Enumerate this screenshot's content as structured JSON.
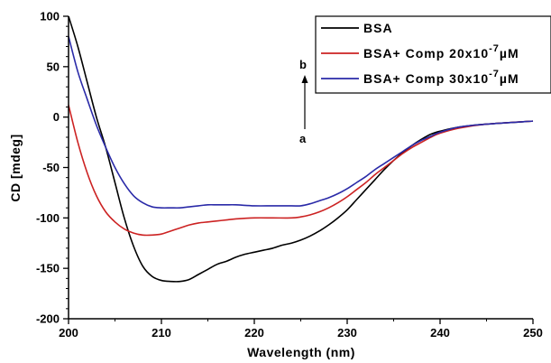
{
  "chart_data": {
    "type": "line",
    "xlabel": "Wavelength (nm)",
    "ylabel": "CD [mdeg]",
    "xlim": [
      200,
      250
    ],
    "ylim": [
      -200,
      100
    ],
    "x_ticks": [
      200,
      210,
      220,
      230,
      240,
      250
    ],
    "y_ticks": [
      100,
      50,
      0,
      -50,
      -100,
      -150,
      -200
    ],
    "x_tick_labels": [
      "200",
      "210",
      "220",
      "230",
      "240",
      "250"
    ],
    "y_tick_labels": [
      "100",
      "50",
      "0",
      "-50",
      "-100",
      "-150",
      "-200"
    ],
    "grid": false,
    "legend_position": "top-right",
    "series": [
      {
        "name": "BSA",
        "color": "#000000",
        "legend": {
          "prefix": "BSA",
          "base": "",
          "sup": "",
          "suffix": ""
        },
        "points": [
          [
            200,
            100
          ],
          [
            201,
            70
          ],
          [
            202,
            35
          ],
          [
            203,
            0
          ],
          [
            204,
            -30
          ],
          [
            205,
            -65
          ],
          [
            206,
            -100
          ],
          [
            207,
            -128
          ],
          [
            208,
            -148
          ],
          [
            209,
            -158
          ],
          [
            210,
            -162
          ],
          [
            211,
            -163
          ],
          [
            212,
            -163
          ],
          [
            213,
            -161
          ],
          [
            214,
            -156
          ],
          [
            215,
            -151
          ],
          [
            216,
            -146
          ],
          [
            217,
            -143
          ],
          [
            218,
            -139
          ],
          [
            219,
            -136
          ],
          [
            220,
            -134
          ],
          [
            221,
            -132
          ],
          [
            222,
            -130
          ],
          [
            223,
            -127
          ],
          [
            224,
            -125
          ],
          [
            225,
            -122
          ],
          [
            226,
            -118
          ],
          [
            227,
            -113
          ],
          [
            228,
            -107
          ],
          [
            229,
            -100
          ],
          [
            230,
            -92
          ],
          [
            231,
            -82
          ],
          [
            232,
            -72
          ],
          [
            233,
            -62
          ],
          [
            234,
            -52
          ],
          [
            235,
            -43
          ],
          [
            236,
            -35
          ],
          [
            237,
            -28
          ],
          [
            238,
            -22
          ],
          [
            239,
            -17
          ],
          [
            240,
            -14
          ],
          [
            242,
            -10
          ],
          [
            245,
            -7
          ],
          [
            250,
            -4
          ]
        ]
      },
      {
        "name": "BSA+ Comp 20x10-7 µM",
        "color": "#cc2222",
        "legend": {
          "prefix": "BSA+ Comp ",
          "base": "20x10",
          "sup": "-7",
          "suffix": "µM"
        },
        "points": [
          [
            200,
            12
          ],
          [
            201,
            -25
          ],
          [
            202,
            -55
          ],
          [
            203,
            -78
          ],
          [
            204,
            -94
          ],
          [
            205,
            -104
          ],
          [
            206,
            -111
          ],
          [
            207,
            -115
          ],
          [
            208,
            -117
          ],
          [
            209,
            -117
          ],
          [
            210,
            -116
          ],
          [
            211,
            -113
          ],
          [
            212,
            -110
          ],
          [
            213,
            -107
          ],
          [
            214,
            -105
          ],
          [
            215,
            -104
          ],
          [
            216,
            -103
          ],
          [
            217,
            -102
          ],
          [
            218,
            -101
          ],
          [
            220,
            -100
          ],
          [
            222,
            -100
          ],
          [
            224,
            -100
          ],
          [
            225,
            -99
          ],
          [
            226,
            -97
          ],
          [
            227,
            -94
          ],
          [
            228,
            -90
          ],
          [
            229,
            -85
          ],
          [
            230,
            -79
          ],
          [
            231,
            -72
          ],
          [
            232,
            -65
          ],
          [
            233,
            -57
          ],
          [
            234,
            -50
          ],
          [
            235,
            -43
          ],
          [
            236,
            -36
          ],
          [
            237,
            -30
          ],
          [
            238,
            -25
          ],
          [
            239,
            -20
          ],
          [
            240,
            -16
          ],
          [
            242,
            -11
          ],
          [
            245,
            -7
          ],
          [
            250,
            -4
          ]
        ]
      },
      {
        "name": "BSA+ Comp 30x10-7 µM",
        "color": "#2a2aa8",
        "legend": {
          "prefix": "BSA+ Comp ",
          "base": "30x10",
          "sup": "-7",
          "suffix": "µM"
        },
        "points": [
          [
            200,
            80
          ],
          [
            201,
            45
          ],
          [
            202,
            18
          ],
          [
            203,
            -8
          ],
          [
            204,
            -30
          ],
          [
            205,
            -50
          ],
          [
            206,
            -66
          ],
          [
            207,
            -78
          ],
          [
            208,
            -85
          ],
          [
            209,
            -89
          ],
          [
            210,
            -90
          ],
          [
            211,
            -90
          ],
          [
            212,
            -90
          ],
          [
            213,
            -89
          ],
          [
            214,
            -88
          ],
          [
            215,
            -87
          ],
          [
            216,
            -87
          ],
          [
            217,
            -87
          ],
          [
            218,
            -87
          ],
          [
            220,
            -88
          ],
          [
            222,
            -88
          ],
          [
            224,
            -88
          ],
          [
            225,
            -88
          ],
          [
            226,
            -86
          ],
          [
            227,
            -83
          ],
          [
            228,
            -80
          ],
          [
            229,
            -76
          ],
          [
            230,
            -71
          ],
          [
            231,
            -65
          ],
          [
            232,
            -59
          ],
          [
            233,
            -52
          ],
          [
            234,
            -46
          ],
          [
            235,
            -40
          ],
          [
            236,
            -34
          ],
          [
            237,
            -28
          ],
          [
            238,
            -23
          ],
          [
            239,
            -19
          ],
          [
            240,
            -15
          ],
          [
            242,
            -10
          ],
          [
            245,
            -7
          ],
          [
            250,
            -4
          ]
        ]
      }
    ],
    "annotations": {
      "arrow_top": "b",
      "arrow_bottom": "a"
    }
  }
}
